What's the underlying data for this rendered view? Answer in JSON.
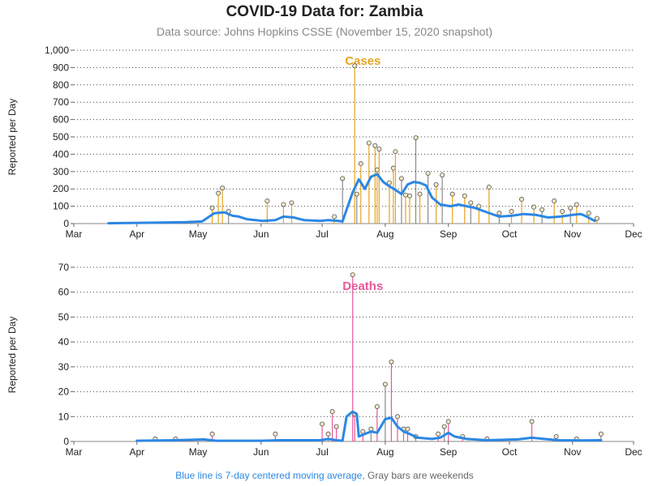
{
  "title": "COVID-19 Data for: Zambia",
  "subtitle": "Data source: Johns Hopkins CSSE (November 15, 2020 snapshot)",
  "footnote": {
    "blue_part": "Blue line is 7-day centered moving average,",
    "gray_part": "Gray bars are weekends"
  },
  "colors": {
    "cases": "#e6a421",
    "deaths": "#e8589b",
    "moving_average": "#2b87e3",
    "weekend": "#8a8a8a"
  },
  "chart_data": [
    {
      "type": "bar",
      "panel_label": "Cases",
      "ylabel": "Reported per Day",
      "xlabel": "",
      "ylim": [
        0,
        1000
      ],
      "yticks": [
        0,
        100,
        200,
        300,
        400,
        500,
        600,
        700,
        800,
        900,
        1000
      ],
      "ytick_labels": [
        "0",
        "100",
        "200",
        "300",
        "400",
        "500",
        "600",
        "700",
        "800",
        "900",
        "1,000"
      ],
      "xlim": [
        "2020-03-01",
        "2020-12-01"
      ],
      "xtick_labels": [
        "Mar",
        "Apr",
        "May",
        "Jun",
        "Jul",
        "Aug",
        "Sep",
        "Oct",
        "Nov",
        "Dec"
      ],
      "grid": "horizontal dotted",
      "spikes": [
        [
          "2020-05-08",
          90
        ],
        [
          "2020-05-11",
          175
        ],
        [
          "2020-05-13",
          205
        ],
        [
          "2020-05-16",
          70
        ],
        [
          "2020-06-04",
          130
        ],
        [
          "2020-06-12",
          110
        ],
        [
          "2020-06-16",
          120
        ],
        [
          "2020-07-07",
          40
        ],
        [
          "2020-07-11",
          260
        ],
        [
          "2020-07-17",
          910
        ],
        [
          "2020-07-18",
          170
        ],
        [
          "2020-07-20",
          345
        ],
        [
          "2020-07-24",
          465
        ],
        [
          "2020-07-27",
          450
        ],
        [
          "2020-07-28",
          310
        ],
        [
          "2020-07-29",
          430
        ],
        [
          "2020-08-03",
          235
        ],
        [
          "2020-08-05",
          320
        ],
        [
          "2020-08-06",
          415
        ],
        [
          "2020-08-09",
          260
        ],
        [
          "2020-08-11",
          165
        ],
        [
          "2020-08-13",
          160
        ],
        [
          "2020-08-16",
          495
        ],
        [
          "2020-08-18",
          170
        ],
        [
          "2020-08-22",
          290
        ],
        [
          "2020-08-26",
          225
        ],
        [
          "2020-08-29",
          280
        ],
        [
          "2020-09-03",
          170
        ],
        [
          "2020-09-09",
          160
        ],
        [
          "2020-09-12",
          120
        ],
        [
          "2020-09-16",
          100
        ],
        [
          "2020-09-21",
          210
        ],
        [
          "2020-09-26",
          60
        ],
        [
          "2020-10-02",
          70
        ],
        [
          "2020-10-07",
          140
        ],
        [
          "2020-10-13",
          95
        ],
        [
          "2020-10-17",
          80
        ],
        [
          "2020-10-23",
          130
        ],
        [
          "2020-10-27",
          70
        ],
        [
          "2020-10-31",
          90
        ],
        [
          "2020-11-03",
          110
        ],
        [
          "2020-11-09",
          60
        ],
        [
          "2020-11-13",
          30
        ]
      ],
      "moving_average": [
        [
          "2020-03-18",
          2
        ],
        [
          "2020-03-25",
          3
        ],
        [
          "2020-04-10",
          5
        ],
        [
          "2020-04-25",
          8
        ],
        [
          "2020-05-03",
          12
        ],
        [
          "2020-05-09",
          60
        ],
        [
          "2020-05-14",
          65
        ],
        [
          "2020-05-18",
          45
        ],
        [
          "2020-05-21",
          40
        ],
        [
          "2020-05-25",
          25
        ],
        [
          "2020-06-02",
          15
        ],
        [
          "2020-06-08",
          20
        ],
        [
          "2020-06-12",
          40
        ],
        [
          "2020-06-17",
          35
        ],
        [
          "2020-06-22",
          20
        ],
        [
          "2020-06-30",
          15
        ],
        [
          "2020-07-04",
          20
        ],
        [
          "2020-07-09",
          15
        ],
        [
          "2020-07-11",
          12
        ],
        [
          "2020-07-13",
          80
        ],
        [
          "2020-07-16",
          180
        ],
        [
          "2020-07-19",
          255
        ],
        [
          "2020-07-22",
          200
        ],
        [
          "2020-07-25",
          270
        ],
        [
          "2020-07-28",
          285
        ],
        [
          "2020-07-31",
          240
        ],
        [
          "2020-08-03",
          215
        ],
        [
          "2020-08-06",
          195
        ],
        [
          "2020-08-09",
          170
        ],
        [
          "2020-08-12",
          225
        ],
        [
          "2020-08-15",
          240
        ],
        [
          "2020-08-18",
          235
        ],
        [
          "2020-08-21",
          220
        ],
        [
          "2020-08-24",
          150
        ],
        [
          "2020-08-28",
          110
        ],
        [
          "2020-09-02",
          100
        ],
        [
          "2020-09-06",
          110
        ],
        [
          "2020-09-10",
          100
        ],
        [
          "2020-09-14",
          90
        ],
        [
          "2020-09-20",
          65
        ],
        [
          "2020-09-26",
          40
        ],
        [
          "2020-10-02",
          45
        ],
        [
          "2020-10-08",
          55
        ],
        [
          "2020-10-14",
          50
        ],
        [
          "2020-10-20",
          35
        ],
        [
          "2020-10-26",
          40
        ],
        [
          "2020-11-01",
          50
        ],
        [
          "2020-11-05",
          55
        ],
        [
          "2020-11-08",
          40
        ],
        [
          "2020-11-12",
          15
        ]
      ]
    },
    {
      "type": "bar",
      "panel_label": "Deaths",
      "ylabel": "Reported per Day",
      "xlabel": "",
      "ylim": [
        0,
        70
      ],
      "yticks": [
        0,
        10,
        20,
        30,
        40,
        50,
        60,
        70
      ],
      "ytick_labels": [
        "0",
        "10",
        "20",
        "30",
        "40",
        "50",
        "60",
        "70"
      ],
      "xlim": [
        "2020-03-01",
        "2020-12-01"
      ],
      "xtick_labels": [
        "Mar",
        "Apr",
        "May",
        "Jun",
        "Jul",
        "Aug",
        "Sep",
        "Oct",
        "Nov",
        "Dec"
      ],
      "grid": "horizontal dotted",
      "spikes": [
        [
          "2020-04-10",
          1
        ],
        [
          "2020-04-20",
          1
        ],
        [
          "2020-05-08",
          3
        ],
        [
          "2020-06-08",
          3
        ],
        [
          "2020-07-01",
          7
        ],
        [
          "2020-07-04",
          3
        ],
        [
          "2020-07-06",
          12
        ],
        [
          "2020-07-08",
          6
        ],
        [
          "2020-07-16",
          67
        ],
        [
          "2020-07-17",
          11
        ],
        [
          "2020-07-21",
          4
        ],
        [
          "2020-07-25",
          5
        ],
        [
          "2020-07-28",
          14
        ],
        [
          "2020-08-01",
          23
        ],
        [
          "2020-08-04",
          32
        ],
        [
          "2020-08-07",
          10
        ],
        [
          "2020-08-10",
          5
        ],
        [
          "2020-08-12",
          5
        ],
        [
          "2020-08-16",
          2
        ],
        [
          "2020-08-27",
          3
        ],
        [
          "2020-08-30",
          6
        ],
        [
          "2020-09-01",
          8
        ],
        [
          "2020-09-08",
          2
        ],
        [
          "2020-09-20",
          1
        ],
        [
          "2020-10-12",
          8
        ],
        [
          "2020-10-24",
          2
        ],
        [
          "2020-11-03",
          1
        ],
        [
          "2020-11-15",
          3
        ]
      ],
      "moving_average": [
        [
          "2020-04-01",
          0.3
        ],
        [
          "2020-04-20",
          0.5
        ],
        [
          "2020-05-04",
          0.8
        ],
        [
          "2020-05-10",
          0.3
        ],
        [
          "2020-06-01",
          0.3
        ],
        [
          "2020-06-10",
          0.5
        ],
        [
          "2020-06-30",
          0.5
        ],
        [
          "2020-07-04",
          1
        ],
        [
          "2020-07-08",
          0.5
        ],
        [
          "2020-07-11",
          0.3
        ],
        [
          "2020-07-13",
          10
        ],
        [
          "2020-07-16",
          12
        ],
        [
          "2020-07-18",
          11
        ],
        [
          "2020-07-19",
          2
        ],
        [
          "2020-07-22",
          3
        ],
        [
          "2020-07-25",
          4
        ],
        [
          "2020-07-28",
          3.5
        ],
        [
          "2020-08-01",
          9
        ],
        [
          "2020-08-04",
          9.5
        ],
        [
          "2020-08-07",
          6
        ],
        [
          "2020-08-10",
          4
        ],
        [
          "2020-08-13",
          3
        ],
        [
          "2020-08-17",
          1.5
        ],
        [
          "2020-08-24",
          1
        ],
        [
          "2020-08-28",
          1.5
        ],
        [
          "2020-09-01",
          3.5
        ],
        [
          "2020-09-04",
          2
        ],
        [
          "2020-09-10",
          1
        ],
        [
          "2020-09-20",
          0.5
        ],
        [
          "2020-10-05",
          0.8
        ],
        [
          "2020-10-12",
          1.5
        ],
        [
          "2020-10-18",
          1
        ],
        [
          "2020-10-25",
          0.5
        ],
        [
          "2020-11-05",
          0.4
        ],
        [
          "2020-11-15",
          0.5
        ]
      ]
    }
  ]
}
